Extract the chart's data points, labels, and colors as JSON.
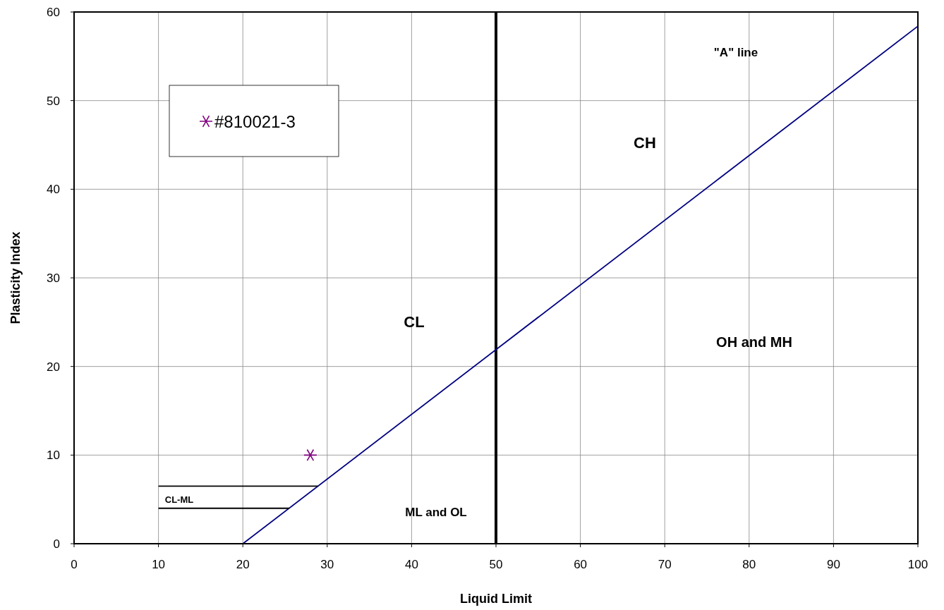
{
  "chart_data": {
    "type": "line",
    "xlabel": "Liquid Limit",
    "ylabel": "Plasticity Index",
    "xlim": [
      0,
      100
    ],
    "ylim": [
      0,
      60
    ],
    "xticks": [
      0,
      10,
      20,
      30,
      40,
      50,
      60,
      70,
      80,
      90,
      100
    ],
    "yticks": [
      0,
      10,
      20,
      30,
      40,
      50,
      60
    ],
    "grid": true,
    "legend": "top left",
    "series": [
      {
        "x": [
          20,
          100
        ],
        "values": [
          0,
          58.4
        ],
        "color": "#000080",
        "marker": "none"
      },
      {
        "x": [
          10,
          28.9
        ],
        "values": [
          6.5,
          6.5
        ],
        "color": "#000000",
        "marker": "none"
      },
      {
        "x": [
          10,
          25.5
        ],
        "values": [
          4,
          4
        ],
        "color": "#000000",
        "marker": "none"
      },
      {
        "type": "scatter",
        "name": "#810021-3",
        "x": [
          28
        ],
        "values": [
          10
        ],
        "color": "#800080",
        "marker": "cross"
      }
    ],
    "ref_lines": [
      {
        "axis": "x",
        "value": 50,
        "color": "#000000"
      }
    ],
    "annotations": [
      "\"A\" line",
      "CH",
      "CL",
      "OH and MH",
      "ML and OL",
      "CL-ML"
    ]
  }
}
